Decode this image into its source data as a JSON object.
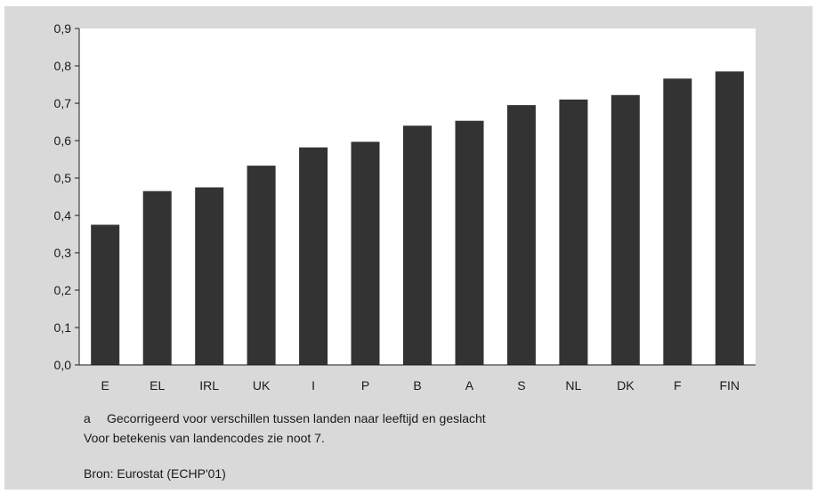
{
  "chart_data": {
    "type": "bar",
    "categories": [
      "E",
      "EL",
      "IRL",
      "UK",
      "I",
      "P",
      "B",
      "A",
      "S",
      "NL",
      "DK",
      "F",
      "FIN"
    ],
    "values": [
      0.375,
      0.465,
      0.475,
      0.533,
      0.582,
      0.597,
      0.64,
      0.653,
      0.695,
      0.71,
      0.722,
      0.766,
      0.785
    ],
    "y_ticks": [
      "0,0",
      "0,1",
      "0,2",
      "0,3",
      "0,4",
      "0,5",
      "0,6",
      "0,7",
      "0,8",
      "0,9"
    ],
    "ylim": [
      0,
      0.9
    ],
    "grid": false,
    "bar_color": "#333333",
    "plot_background": "#ffffff",
    "panel_background": "#d9d9d9"
  },
  "notes": {
    "footnote_marker": "a",
    "footnote_text": "Gecorrigeerd voor verschillen tussen landen naar leeftijd en geslacht",
    "country_codes_note": "Voor betekenis van landencodes zie noot 7.",
    "source": "Bron: Eurostat (ECHP'01)"
  }
}
